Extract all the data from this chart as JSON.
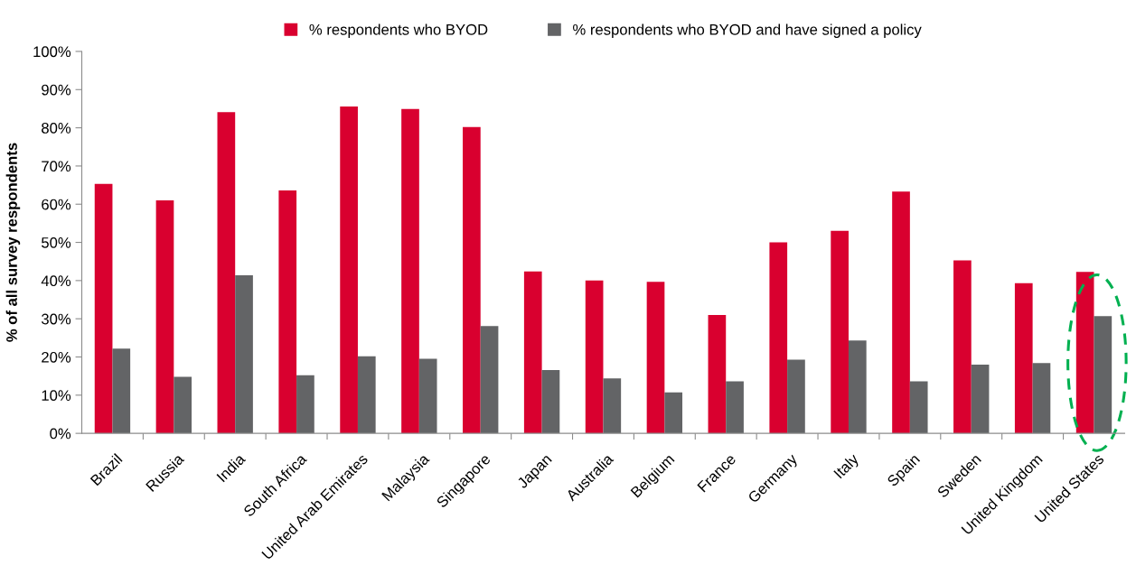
{
  "chart_data": {
    "type": "bar",
    "ylabel": "% of all survey respondents",
    "categories": [
      "Brazil",
      "Russia",
      "India",
      "South Africa",
      "United Arab Emirates",
      "Malaysia",
      "Singapore",
      "Japan",
      "Australia",
      "Belgium",
      "France",
      "Germany",
      "Italy",
      "Spain",
      "Sweden",
      "United Kingdom",
      "United States"
    ],
    "series": [
      {
        "name": "% respondents who BYOD",
        "color": "#d9002f",
        "values": [
          65.3,
          61.0,
          84.1,
          63.6,
          85.6,
          84.9,
          80.2,
          42.4,
          40.0,
          39.7,
          31.0,
          50.0,
          53.0,
          63.3,
          45.3,
          39.3,
          42.3
        ]
      },
      {
        "name": "% respondents who BYOD and have signed a policy",
        "color": "#636466",
        "values": [
          22.2,
          14.8,
          41.4,
          15.2,
          20.2,
          19.5,
          28.1,
          16.6,
          14.4,
          10.7,
          13.6,
          19.3,
          24.3,
          13.6,
          18.0,
          18.4,
          30.7
        ]
      }
    ],
    "ylim": [
      0,
      100
    ],
    "yticks": [
      {
        "value": 0,
        "label": "0%"
      },
      {
        "value": 10,
        "label": "10%"
      },
      {
        "value": 20,
        "label": "20%"
      },
      {
        "value": 30,
        "label": "30%"
      },
      {
        "value": 40,
        "label": "40%"
      },
      {
        "value": 50,
        "label": "50%"
      },
      {
        "value": 60,
        "label": "60%"
      },
      {
        "value": 70,
        "label": "70%"
      },
      {
        "value": 80,
        "label": "80%"
      },
      {
        "value": 90,
        "label": "90%"
      },
      {
        "value": 100,
        "label": "100%"
      }
    ],
    "grid": false,
    "legend": "top"
  }
}
